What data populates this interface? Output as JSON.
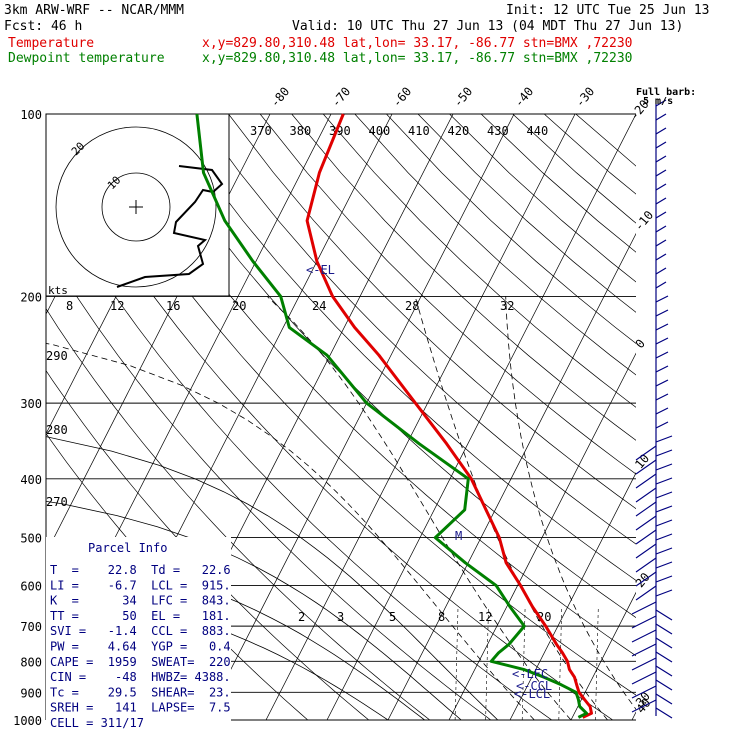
{
  "header": {
    "model": "3km ARW-WRF -- NCAR/MMM",
    "init": "Init: 12 UTC Tue 25 Jun 13",
    "fcst": "Fcst:   46 h",
    "valid": "Valid: 10 UTC Thu 27 Jun 13 (04 MDT Thu 27 Jun 13)",
    "temp_label": "Temperature",
    "temp_loc": "x,y=829.80,310.48   lat,lon= 33.17, -86.77   stn=BMX ,72230",
    "dew_label": "Dewpoint temperature",
    "dew_loc": "x,y=829.80,310.48   lat,lon= 33.17, -86.77   stn=BMX ,72230"
  },
  "colors": {
    "temperature": "#e00000",
    "dewpoint": "#008000",
    "barbs": "#000080",
    "text": "#000000"
  },
  "chart_data": {
    "type": "line",
    "skewt": true,
    "y_scale": "log-pressure",
    "ylabel": "",
    "ylim": [
      1000,
      100
    ],
    "pressure_ticks": [
      100,
      200,
      300,
      400,
      500,
      600,
      700,
      800,
      900,
      1000
    ],
    "isotherm_labels": [
      -80,
      -70,
      -60,
      -50,
      -40,
      -30,
      -20,
      -10,
      0,
      10,
      20,
      30,
      40
    ],
    "theta_labels": [
      370,
      380,
      390,
      400,
      410,
      420,
      430,
      440
    ],
    "theta_left_labels": [
      290,
      280,
      270
    ],
    "mixing_ratio_labels": [
      2,
      3,
      5,
      8,
      12,
      20
    ],
    "hodograph": {
      "unit": "kts",
      "speed_labels": [
        8,
        12,
        16,
        20,
        24,
        28,
        32
      ],
      "ring_labels": [
        20,
        10
      ]
    },
    "series": [
      {
        "name": "Temperature",
        "pressure": [
          990,
          975,
          950,
          925,
          900,
          875,
          850,
          825,
          800,
          775,
          750,
          700,
          650,
          600,
          550,
          500,
          450,
          400,
          350,
          300,
          250,
          225,
          200,
          175,
          150,
          125,
          100
        ],
        "values": [
          21.7,
          22.8,
          22.0,
          20.5,
          19.0,
          18.0,
          17.0,
          15.5,
          14.5,
          13.0,
          11.3,
          8.0,
          4.2,
          0.5,
          -3.8,
          -7.0,
          -11.5,
          -16.5,
          -23.5,
          -32.0,
          -42.0,
          -48.3,
          -54.5,
          -60.0,
          -65.0,
          -67.0,
          -68.0
        ]
      },
      {
        "name": "Dewpoint temperature",
        "pressure": [
          990,
          975,
          950,
          925,
          900,
          875,
          850,
          825,
          800,
          775,
          750,
          700,
          650,
          600,
          550,
          500,
          450,
          400,
          350,
          300,
          250,
          225,
          200,
          175,
          150,
          125,
          100
        ],
        "values": [
          21.0,
          22.0,
          20.3,
          19.5,
          18.5,
          15.5,
          12.0,
          8.0,
          2.0,
          2.5,
          3.5,
          4.5,
          0.5,
          -3.5,
          -10.5,
          -17.5,
          -15.0,
          -17.0,
          -28.0,
          -40.0,
          -50.5,
          -59.0,
          -63.0,
          -70.5,
          -78.5,
          -86.0,
          -92.0
        ]
      }
    ],
    "annotations": {
      "el": "<-EL",
      "lfc": "<-LFC",
      "ccl": "<-CCL",
      "lcl": "<-LCL",
      "m": "M"
    },
    "full_barb_note": "Full barb:",
    "full_barb_value": "5 m/s"
  },
  "parcel_info": {
    "title": "Parcel Info",
    "rows": [
      "T  =    22.8  Td =   22.6",
      "LI =    -6.7  LCL =  915.",
      "K  =      34  LFC =  843.",
      "TT =      50  EL =   181.",
      "SVI =   -1.4  CCL =  883.",
      "PW =    4.64  YGP =   0.4",
      "CAPE =  1959  SWEAT=  220",
      "CIN =    -48  HWBZ= 4388.",
      "Tc =    29.5  SHEAR=  23.",
      "SREH =   141  LAPSE=  7.5",
      "CELL = 311/17"
    ]
  }
}
